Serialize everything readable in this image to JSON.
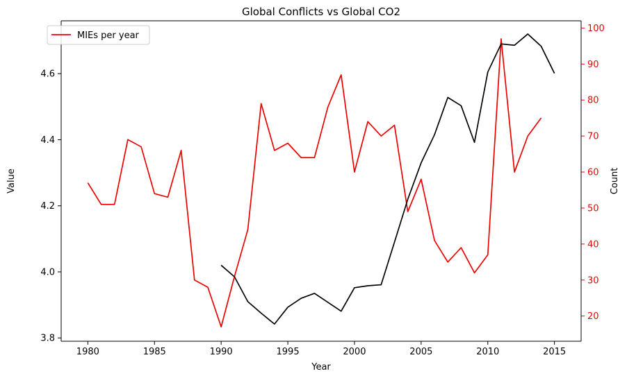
{
  "chart_data": {
    "type": "line",
    "title": "Global Conflicts vs Global CO2",
    "xlabel": "Year",
    "ylabel_left": "Value",
    "ylabel_right": "Count",
    "xlim": [
      1978,
      2017
    ],
    "ylim_left": [
      3.79,
      4.76
    ],
    "ylim_right": [
      13,
      102
    ],
    "x_ticks": [
      1980,
      1985,
      1990,
      1995,
      2000,
      2005,
      2010,
      2015
    ],
    "y_left_ticks": [
      3.8,
      4.0,
      4.2,
      4.4,
      4.6
    ],
    "y_right_ticks": [
      20,
      30,
      40,
      50,
      60,
      70,
      80,
      90,
      100
    ],
    "x_tick_labels": [
      "1980",
      "1985",
      "1990",
      "1995",
      "2000",
      "2005",
      "2010",
      "2015"
    ],
    "y_left_tick_labels": [
      "3.8",
      "4.0",
      "4.2",
      "4.4",
      "4.6"
    ],
    "y_right_tick_labels": [
      "20",
      "30",
      "40",
      "50",
      "60",
      "70",
      "80",
      "90",
      "100"
    ],
    "grid": false,
    "legend_position": "top-left",
    "colors": {
      "conflicts": "#ee0000",
      "co2": "#000000",
      "right_axis": "#ee0000"
    },
    "series": [
      {
        "name": "MIEs per year",
        "axis": "right",
        "color": "#ee0000",
        "x": [
          1980,
          1981,
          1982,
          1983,
          1984,
          1985,
          1986,
          1987,
          1988,
          1989,
          1990,
          1991,
          1992,
          1993,
          1994,
          1995,
          1996,
          1997,
          1998,
          1999,
          2000,
          2001,
          2002,
          2003,
          2004,
          2005,
          2006,
          2007,
          2008,
          2009,
          2010,
          2011,
          2012,
          2013,
          2014
        ],
        "values": [
          57,
          51,
          51,
          69,
          67,
          54,
          53,
          66,
          30,
          28,
          17,
          31,
          44,
          79,
          66,
          68,
          64,
          64,
          78,
          87,
          60,
          74,
          70,
          73,
          49,
          58,
          41,
          35,
          39,
          32,
          37,
          97,
          60,
          70,
          75
        ]
      },
      {
        "name": "",
        "axis": "left",
        "color": "#000000",
        "x": [
          1990,
          1991,
          1992,
          1993,
          1994,
          1995,
          1996,
          1997,
          1998,
          1999,
          2000,
          2001,
          2002,
          2003,
          2004,
          2005,
          2006,
          2007,
          2008,
          2009,
          2010,
          2011,
          2012,
          2013,
          2014,
          2015
        ],
        "values": [
          4.02,
          3.985,
          3.91,
          3.875,
          3.842,
          3.893,
          3.92,
          3.935,
          3.908,
          3.881,
          3.952,
          3.958,
          3.961,
          4.09,
          4.22,
          4.33,
          4.415,
          4.528,
          4.503,
          4.392,
          4.605,
          4.69,
          4.686,
          4.72,
          4.683,
          4.601
        ]
      }
    ]
  }
}
